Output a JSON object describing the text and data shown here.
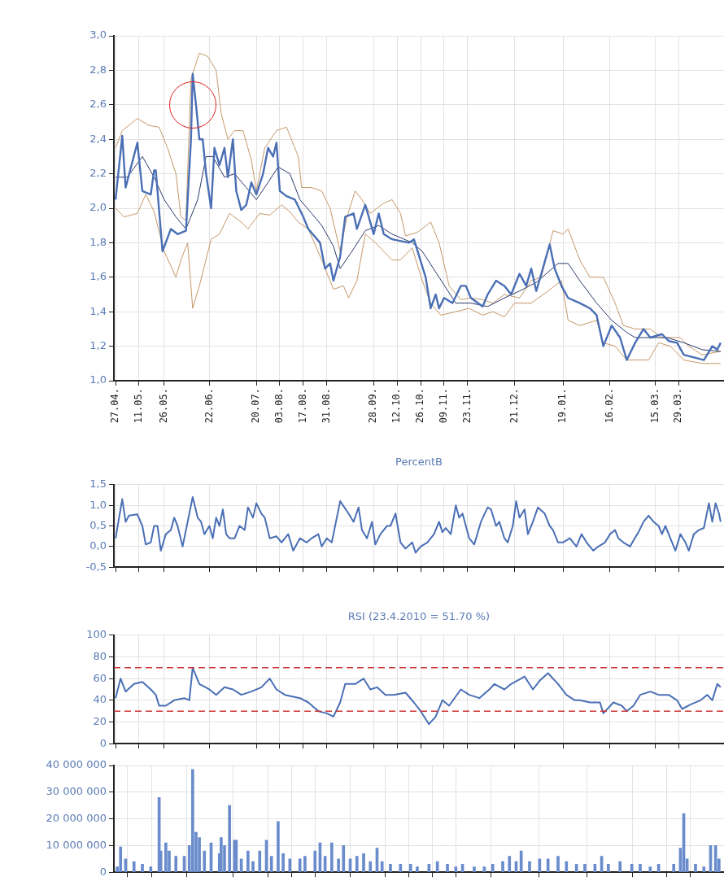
{
  "chart_data": [
    {
      "type": "line",
      "grid": true,
      "xlim": [
        "2009-04-26",
        "2010-04-25"
      ],
      "xticks": [
        {
          "value": "2009-04-27",
          "label": "27.04."
        },
        {
          "value": "2009-05-11",
          "label": "11.05."
        },
        {
          "value": "2009-05-26",
          "label": "26.05."
        },
        {
          "value": "2009-06-22",
          "label": "22.06."
        },
        {
          "value": "2009-07-20",
          "label": "20.07."
        },
        {
          "value": "2009-08-03",
          "label": "03.08."
        },
        {
          "value": "2009-08-17",
          "label": "17.08."
        },
        {
          "value": "2009-08-31",
          "label": "31.08."
        },
        {
          "value": "2009-09-28",
          "label": "28.09."
        },
        {
          "value": "2009-10-12",
          "label": "12.10."
        },
        {
          "value": "2009-10-26",
          "label": "26.10."
        },
        {
          "value": "2009-11-09",
          "label": "09.11."
        },
        {
          "value": "2009-11-23",
          "label": "23.11."
        },
        {
          "value": "2009-12-21",
          "label": "21.12."
        },
        {
          "value": "2010-01-19",
          "label": "19.01."
        },
        {
          "value": "2010-02-16",
          "label": "16.02."
        },
        {
          "value": "2010-03-15",
          "label": "15.03."
        },
        {
          "value": "2010-03-29",
          "label": "29.03."
        }
      ],
      "ylim": [
        1.0,
        3.0
      ],
      "yticks": [
        {
          "value": 1.0,
          "label": "1,0"
        },
        {
          "value": 1.2,
          "label": "1,2"
        },
        {
          "value": 1.4,
          "label": "1,4"
        },
        {
          "value": 1.6,
          "label": "1,6"
        },
        {
          "value": 1.8,
          "label": "1,8"
        },
        {
          "value": 2.0,
          "label": "2,0"
        },
        {
          "value": 2.2,
          "label": "2,2"
        },
        {
          "value": 2.4,
          "label": "2,4"
        },
        {
          "value": 2.6,
          "label": "2,6"
        },
        {
          "value": 2.8,
          "label": "2,8"
        },
        {
          "value": 3.0,
          "label": "3,0"
        }
      ],
      "series": [
        {
          "color": "#4a6fb5",
          "x": [
            "2009-04-27",
            "2009-05-01",
            "2009-05-03",
            "2009-05-10",
            "2009-05-13",
            "2009-05-18",
            "2009-05-20",
            "2009-05-21",
            "2009-05-25",
            "2009-05-30",
            "2009-06-03",
            "2009-06-08",
            "2009-06-11",
            "2009-06-12",
            "2009-06-14",
            "2009-06-16",
            "2009-06-18",
            "2009-06-20",
            "2009-06-23",
            "2009-06-25",
            "2009-06-28",
            "2009-07-01",
            "2009-07-03",
            "2009-07-06",
            "2009-07-08",
            "2009-07-11",
            "2009-07-14",
            "2009-07-17",
            "2009-07-20",
            "2009-07-24",
            "2009-07-27",
            "2009-07-30",
            "2009-08-01",
            "2009-08-03",
            "2009-08-07",
            "2009-08-12",
            "2009-08-17",
            "2009-08-20",
            "2009-08-27",
            "2009-08-30",
            "2009-09-02",
            "2009-09-04",
            "2009-09-08",
            "2009-09-11",
            "2009-09-16",
            "2009-09-18",
            "2009-09-23",
            "2009-09-28",
            "2009-10-01",
            "2009-10-04",
            "2009-10-09",
            "2009-10-19",
            "2009-10-22",
            "2009-10-29",
            "2009-11-01",
            "2009-11-04",
            "2009-11-06",
            "2009-11-09",
            "2009-11-14",
            "2009-11-19",
            "2009-11-22",
            "2009-11-25",
            "2009-12-02",
            "2009-12-05",
            "2009-12-10",
            "2009-12-15",
            "2009-12-19",
            "2009-12-24",
            "2009-12-28",
            "2009-12-31",
            "2010-01-03",
            "2010-01-06",
            "2010-01-11",
            "2010-01-14",
            "2010-01-18",
            "2010-01-22",
            "2010-01-29",
            "2010-02-04",
            "2010-02-08",
            "2010-02-12",
            "2010-02-17",
            "2010-02-22",
            "2010-02-26",
            "2010-03-03",
            "2010-03-08",
            "2010-03-12",
            "2010-03-19",
            "2010-03-23",
            "2010-03-28",
            "2010-04-01",
            "2010-04-09",
            "2010-04-13",
            "2010-04-18",
            "2010-04-21",
            "2010-04-23"
          ],
          "values": [
            2.05,
            2.42,
            2.12,
            2.38,
            2.1,
            2.08,
            2.22,
            2.22,
            1.75,
            1.88,
            1.85,
            1.87,
            2.4,
            2.78,
            2.6,
            2.4,
            2.4,
            2.2,
            2.0,
            2.35,
            2.25,
            2.35,
            2.18,
            2.4,
            2.1,
            1.99,
            2.02,
            2.15,
            2.08,
            2.2,
            2.35,
            2.3,
            2.38,
            2.1,
            2.07,
            2.05,
            1.95,
            1.88,
            1.8,
            1.65,
            1.68,
            1.58,
            1.72,
            1.95,
            1.97,
            1.88,
            2.02,
            1.85,
            1.97,
            1.85,
            1.82,
            1.8,
            1.82,
            1.6,
            1.42,
            1.5,
            1.42,
            1.48,
            1.45,
            1.55,
            1.55,
            1.48,
            1.43,
            1.5,
            1.58,
            1.55,
            1.5,
            1.62,
            1.55,
            1.65,
            1.52,
            1.62,
            1.79,
            1.65,
            1.55,
            1.48,
            1.45,
            1.42,
            1.38,
            1.2,
            1.32,
            1.25,
            1.12,
            1.22,
            1.3,
            1.25,
            1.27,
            1.23,
            1.22,
            1.15,
            1.13,
            1.12,
            1.2,
            1.18,
            1.22
          ]
        },
        {
          "color": "#2b3a6b",
          "x": [
            "2009-04-27",
            "2009-05-04",
            "2009-05-13",
            "2009-05-20",
            "2009-05-26",
            "2009-06-02",
            "2009-06-08",
            "2009-06-15",
            "2009-06-20",
            "2009-06-24",
            "2009-07-01",
            "2009-07-07",
            "2009-07-14",
            "2009-07-20",
            "2009-07-27",
            "2009-08-02",
            "2009-08-09",
            "2009-08-15",
            "2009-08-22",
            "2009-08-28",
            "2009-09-04",
            "2009-09-08",
            "2009-09-15",
            "2009-09-23",
            "2009-10-01",
            "2009-10-09",
            "2009-10-21",
            "2009-10-27",
            "2009-11-06",
            "2009-11-16",
            "2009-11-25",
            "2009-12-05",
            "2009-12-15",
            "2009-12-24",
            "2010-01-03",
            "2010-01-16",
            "2010-01-22",
            "2010-01-29",
            "2010-02-08",
            "2010-02-17",
            "2010-02-26",
            "2010-03-03",
            "2010-03-12",
            "2010-03-22",
            "2010-04-01",
            "2010-04-12",
            "2010-04-23"
          ],
          "values": [
            2.18,
            2.18,
            2.3,
            2.18,
            2.05,
            1.95,
            1.88,
            2.05,
            2.3,
            2.3,
            2.18,
            2.2,
            2.12,
            2.05,
            2.15,
            2.24,
            2.2,
            2.05,
            1.97,
            1.9,
            1.78,
            1.65,
            1.75,
            1.87,
            1.9,
            1.85,
            1.8,
            1.75,
            1.6,
            1.45,
            1.45,
            1.43,
            1.48,
            1.52,
            1.57,
            1.68,
            1.68,
            1.58,
            1.45,
            1.35,
            1.28,
            1.25,
            1.25,
            1.25,
            1.22,
            1.18,
            1.17
          ]
        },
        {
          "color": "#c4986a",
          "x": [
            "2009-04-27",
            "2009-05-01",
            "2009-05-10",
            "2009-05-17",
            "2009-05-23",
            "2009-05-28",
            "2009-06-02",
            "2009-06-05",
            "2009-06-08",
            "2009-06-11",
            "2009-06-16",
            "2009-06-21",
            "2009-06-26",
            "2009-06-29",
            "2009-07-03",
            "2009-07-07",
            "2009-07-12",
            "2009-07-17",
            "2009-07-20",
            "2009-07-25",
            "2009-08-01",
            "2009-08-07",
            "2009-08-14",
            "2009-08-16",
            "2009-08-22",
            "2009-08-28",
            "2009-09-02",
            "2009-09-08",
            "2009-09-12",
            "2009-09-17",
            "2009-09-21",
            "2009-09-26",
            "2009-10-04",
            "2009-10-09",
            "2009-10-14",
            "2009-10-17",
            "2009-10-24",
            "2009-11-01",
            "2009-11-06",
            "2009-11-12",
            "2009-11-19",
            "2009-11-25",
            "2009-12-02",
            "2009-12-08",
            "2009-12-15",
            "2009-12-24",
            "2009-12-31",
            "2010-01-06",
            "2010-01-13",
            "2010-01-19",
            "2010-01-22",
            "2010-01-29",
            "2010-02-04",
            "2010-02-12",
            "2010-02-19",
            "2010-02-24",
            "2010-03-03",
            "2010-03-12",
            "2010-03-19",
            "2010-03-30",
            "2010-04-04",
            "2010-04-12",
            "2010-04-23"
          ],
          "values": [
            2.35,
            2.45,
            2.52,
            2.48,
            2.47,
            2.35,
            2.2,
            1.95,
            1.93,
            2.75,
            2.9,
            2.88,
            2.8,
            2.55,
            2.4,
            2.45,
            2.45,
            2.28,
            2.1,
            2.35,
            2.45,
            2.47,
            2.3,
            2.12,
            2.12,
            2.1,
            2.0,
            1.75,
            1.95,
            2.1,
            2.05,
            1.97,
            2.03,
            2.05,
            1.97,
            1.84,
            1.86,
            1.92,
            1.8,
            1.55,
            1.47,
            1.48,
            1.47,
            1.45,
            1.5,
            1.48,
            1.58,
            1.6,
            1.87,
            1.85,
            1.88,
            1.7,
            1.6,
            1.6,
            1.45,
            1.32,
            1.3,
            1.3,
            1.25,
            1.25,
            1.2,
            1.15,
            1.17
          ]
        },
        {
          "color": "#c4986a",
          "x": [
            "2009-04-27",
            "2009-05-02",
            "2009-05-10",
            "2009-05-15",
            "2009-05-20",
            "2009-05-26",
            "2009-06-02",
            "2009-06-05",
            "2009-06-09",
            "2009-06-12",
            "2009-06-16",
            "2009-06-23",
            "2009-06-28",
            "2009-07-04",
            "2009-07-11",
            "2009-07-15",
            "2009-07-22",
            "2009-07-28",
            "2009-08-04",
            "2009-08-09",
            "2009-08-14",
            "2009-08-20",
            "2009-08-28",
            "2009-09-04",
            "2009-09-10",
            "2009-09-13",
            "2009-09-18",
            "2009-09-23",
            "2009-09-29",
            "2009-10-09",
            "2009-10-14",
            "2009-10-21",
            "2009-10-27",
            "2009-11-01",
            "2009-11-07",
            "2009-11-16",
            "2009-11-24",
            "2009-12-02",
            "2009-12-08",
            "2009-12-15",
            "2009-12-21",
            "2009-12-31",
            "2010-01-10",
            "2010-01-18",
            "2010-01-22",
            "2010-01-29",
            "2010-02-08",
            "2010-02-12",
            "2010-02-19",
            "2010-02-26",
            "2010-03-03",
            "2010-03-11",
            "2010-03-17",
            "2010-03-24",
            "2010-04-01",
            "2010-04-12",
            "2010-04-23"
          ],
          "values": [
            2.0,
            1.95,
            1.97,
            2.08,
            1.98,
            1.75,
            1.6,
            1.7,
            1.8,
            1.42,
            1.55,
            1.82,
            1.85,
            1.97,
            1.92,
            1.88,
            1.97,
            1.96,
            2.02,
            1.98,
            1.92,
            1.88,
            1.7,
            1.53,
            1.55,
            1.48,
            1.58,
            1.85,
            1.8,
            1.7,
            1.7,
            1.77,
            1.58,
            1.45,
            1.38,
            1.4,
            1.42,
            1.38,
            1.4,
            1.37,
            1.45,
            1.45,
            1.52,
            1.58,
            1.35,
            1.32,
            1.35,
            1.22,
            1.2,
            1.12,
            1.12,
            1.12,
            1.22,
            1.2,
            1.12,
            1.1,
            1.1
          ]
        }
      ]
    },
    {
      "type": "line",
      "title": "PercentB",
      "grid": true,
      "tick_labels": "y",
      "color": "#4a6fb5",
      "xlim": [
        "2009-04-26",
        "2010-04-25"
      ],
      "xticks": [
        {
          "value": "2009-04-27",
          "label": null
        },
        {
          "value": "2009-05-11",
          "label": null
        },
        {
          "value": "2009-05-26",
          "label": null
        },
        {
          "value": "2009-06-22",
          "label": null
        },
        {
          "value": "2009-07-20",
          "label": null
        },
        {
          "value": "2009-08-03",
          "label": null
        },
        {
          "value": "2009-08-17",
          "label": null
        },
        {
          "value": "2009-08-31",
          "label": null
        },
        {
          "value": "2009-09-28",
          "label": null
        },
        {
          "value": "2009-10-12",
          "label": null
        },
        {
          "value": "2009-10-26",
          "label": null
        },
        {
          "value": "2009-11-09",
          "label": null
        },
        {
          "value": "2009-11-23",
          "label": null
        },
        {
          "value": "2009-12-21",
          "label": null
        },
        {
          "value": "2010-01-19",
          "label": null
        },
        {
          "value": "2010-02-16",
          "label": null
        },
        {
          "value": "2010-03-15",
          "label": null
        },
        {
          "value": "2010-03-29",
          "label": null
        }
      ],
      "ylim": [
        -0.5,
        1.5
      ],
      "yticks": [
        {
          "value": -0.5,
          "label": "-0,5"
        },
        {
          "value": 0.0,
          "label": "0,0"
        },
        {
          "value": 0.5,
          "label": "0,5"
        },
        {
          "value": 1.0,
          "label": "1,0"
        },
        {
          "value": 1.5,
          "label": "1,5"
        }
      ],
      "x": [
        "2009-04-27",
        "2009-05-01",
        "2009-05-03",
        "2009-05-05",
        "2009-05-10",
        "2009-05-13",
        "2009-05-15",
        "2009-05-18",
        "2009-05-20",
        "2009-05-22",
        "2009-05-24",
        "2009-05-27",
        "2009-05-30",
        "2009-06-01",
        "2009-06-03",
        "2009-06-06",
        "2009-06-09",
        "2009-06-12",
        "2009-06-15",
        "2009-06-17",
        "2009-06-19",
        "2009-06-22",
        "2009-06-24",
        "2009-06-26",
        "2009-06-28",
        "2009-06-30",
        "2009-07-02",
        "2009-07-04",
        "2009-07-07",
        "2009-07-10",
        "2009-07-13",
        "2009-07-15",
        "2009-07-18",
        "2009-07-20",
        "2009-07-23",
        "2009-07-25",
        "2009-07-28",
        "2009-08-01",
        "2009-08-04",
        "2009-08-08",
        "2009-08-11",
        "2009-08-15",
        "2009-08-19",
        "2009-08-22",
        "2009-08-26",
        "2009-08-28",
        "2009-08-31",
        "2009-09-03",
        "2009-09-08",
        "2009-09-13",
        "2009-09-16",
        "2009-09-19",
        "2009-09-21",
        "2009-09-24",
        "2009-09-27",
        "2009-09-29",
        "2009-10-02",
        "2009-10-06",
        "2009-10-08",
        "2009-10-11",
        "2009-10-14",
        "2009-10-17",
        "2009-10-21",
        "2009-10-23",
        "2009-10-26",
        "2009-10-30",
        "2009-11-03",
        "2009-11-06",
        "2009-11-08",
        "2009-11-10",
        "2009-11-13",
        "2009-11-16",
        "2009-11-18",
        "2009-11-20",
        "2009-11-24",
        "2009-11-27",
        "2009-12-01",
        "2009-12-05",
        "2009-12-07",
        "2009-12-10",
        "2009-12-12",
        "2009-12-15",
        "2009-12-17",
        "2009-12-20",
        "2009-12-22",
        "2009-12-24",
        "2009-12-27",
        "2009-12-29",
        "2010-01-01",
        "2010-01-04",
        "2010-01-08",
        "2010-01-11",
        "2010-01-13",
        "2010-01-16",
        "2010-01-19",
        "2010-01-23",
        "2010-01-27",
        "2010-01-30",
        "2010-02-02",
        "2010-02-06",
        "2010-02-09",
        "2010-02-13",
        "2010-02-16",
        "2010-02-19",
        "2010-02-21",
        "2010-02-24",
        "2010-02-28",
        "2010-03-02",
        "2010-03-05",
        "2010-03-08",
        "2010-03-11",
        "2010-03-14",
        "2010-03-17",
        "2010-03-19",
        "2010-03-21",
        "2010-03-24",
        "2010-03-27",
        "2010-03-30",
        "2010-04-02",
        "2010-04-04",
        "2010-04-07",
        "2010-04-10",
        "2010-04-13",
        "2010-04-16",
        "2010-04-18",
        "2010-04-20",
        "2010-04-22",
        "2010-04-23"
      ],
      "values": [
        0.2,
        1.15,
        0.6,
        0.75,
        0.78,
        0.5,
        0.05,
        0.1,
        0.5,
        0.5,
        -0.1,
        0.3,
        0.4,
        0.7,
        0.5,
        0.0,
        0.6,
        1.2,
        0.7,
        0.6,
        0.3,
        0.5,
        0.2,
        0.7,
        0.5,
        0.9,
        0.3,
        0.2,
        0.2,
        0.5,
        0.4,
        0.95,
        0.7,
        1.05,
        0.8,
        0.7,
        0.2,
        0.25,
        0.1,
        0.3,
        -0.1,
        0.2,
        0.1,
        0.2,
        0.3,
        0.0,
        0.2,
        0.1,
        1.1,
        0.8,
        0.6,
        0.95,
        0.4,
        0.2,
        0.6,
        0.05,
        0.3,
        0.5,
        0.5,
        0.8,
        0.1,
        -0.05,
        0.1,
        -0.15,
        0.0,
        0.1,
        0.3,
        0.6,
        0.35,
        0.45,
        0.3,
        1.0,
        0.7,
        0.8,
        0.2,
        0.05,
        0.6,
        0.95,
        0.9,
        0.5,
        0.6,
        0.2,
        0.1,
        0.5,
        1.1,
        0.7,
        0.9,
        0.3,
        0.6,
        0.95,
        0.8,
        0.5,
        0.4,
        0.1,
        0.1,
        0.2,
        0.0,
        0.3,
        0.1,
        -0.1,
        0.0,
        0.1,
        0.3,
        0.4,
        0.2,
        0.1,
        0.0,
        0.15,
        0.35,
        0.6,
        0.75,
        0.6,
        0.5,
        0.3,
        0.5,
        0.2,
        -0.1,
        0.3,
        0.1,
        -0.1,
        0.3,
        0.4,
        0.45,
        1.05,
        0.6,
        1.05,
        0.8,
        0.6
      ]
    },
    {
      "type": "line",
      "title": "RSI (23.4.2010 = 51.70 %)",
      "grid": true,
      "tick_labels": "y",
      "color": "#4a6fb5",
      "xlim": [
        "2009-04-26",
        "2010-04-25"
      ],
      "xticks": [
        {
          "value": "2009-04-27",
          "label": null
        },
        {
          "value": "2009-05-11",
          "label": null
        },
        {
          "value": "2009-05-26",
          "label": null
        },
        {
          "value": "2009-06-22",
          "label": null
        },
        {
          "value": "2009-07-20",
          "label": null
        },
        {
          "value": "2009-08-03",
          "label": null
        },
        {
          "value": "2009-08-17",
          "label": null
        },
        {
          "value": "2009-08-31",
          "label": null
        },
        {
          "value": "2009-09-28",
          "label": null
        },
        {
          "value": "2009-10-12",
          "label": null
        },
        {
          "value": "2009-10-26",
          "label": null
        },
        {
          "value": "2009-11-09",
          "label": null
        },
        {
          "value": "2009-11-23",
          "label": null
        },
        {
          "value": "2009-12-21",
          "label": null
        },
        {
          "value": "2010-01-19",
          "label": null
        },
        {
          "value": "2010-02-16",
          "label": null
        },
        {
          "value": "2010-03-15",
          "label": null
        },
        {
          "value": "2010-03-29",
          "label": null
        }
      ],
      "ylim": [
        0,
        100
      ],
      "yticks": [
        0,
        20,
        40,
        60,
        80,
        100
      ],
      "ref_lines": [
        {
          "axis": "y",
          "value": 70,
          "color": "#cc3333",
          "line_style": "dashed"
        },
        {
          "axis": "y",
          "value": 30,
          "color": "#cc3333",
          "line_style": "dashed"
        }
      ],
      "x": [
        "2009-04-27",
        "2009-04-30",
        "2009-05-03",
        "2009-05-08",
        "2009-05-13",
        "2009-05-18",
        "2009-05-21",
        "2009-05-23",
        "2009-05-27",
        "2009-06-01",
        "2009-06-07",
        "2009-06-10",
        "2009-06-12",
        "2009-06-16",
        "2009-06-22",
        "2009-06-26",
        "2009-07-01",
        "2009-07-06",
        "2009-07-11",
        "2009-07-17",
        "2009-07-23",
        "2009-07-28",
        "2009-08-01",
        "2009-08-06",
        "2009-08-15",
        "2009-08-20",
        "2009-08-26",
        "2009-08-31",
        "2009-09-04",
        "2009-09-08",
        "2009-09-11",
        "2009-09-17",
        "2009-09-22",
        "2009-09-26",
        "2009-09-30",
        "2009-10-05",
        "2009-10-10",
        "2009-10-17",
        "2009-10-22",
        "2009-10-26",
        "2009-10-31",
        "2009-11-04",
        "2009-11-08",
        "2009-11-12",
        "2009-11-19",
        "2009-11-24",
        "2009-11-30",
        "2009-12-06",
        "2009-12-09",
        "2009-12-15",
        "2009-12-19",
        "2009-12-25",
        "2009-12-27",
        "2010-01-01",
        "2010-01-05",
        "2010-01-10",
        "2010-01-16",
        "2010-01-21",
        "2010-01-26",
        "2010-01-29",
        "2010-02-04",
        "2010-02-10",
        "2010-02-12",
        "2010-02-18",
        "2010-02-23",
        "2010-02-26",
        "2010-03-02",
        "2010-03-06",
        "2010-03-12",
        "2010-03-17",
        "2010-03-23",
        "2010-03-28",
        "2010-03-31",
        "2010-04-05",
        "2010-04-11",
        "2010-04-15",
        "2010-04-18",
        "2010-04-21",
        "2010-04-23"
      ],
      "values": [
        42,
        60,
        48,
        55,
        57,
        50,
        45,
        35,
        35,
        40,
        42,
        40,
        70,
        55,
        50,
        45,
        52,
        50,
        45,
        48,
        52,
        60,
        50,
        45,
        42,
        38,
        30,
        28,
        25,
        38,
        55,
        55,
        60,
        50,
        52,
        45,
        45,
        47,
        38,
        30,
        18,
        25,
        40,
        35,
        50,
        45,
        42,
        50,
        55,
        50,
        55,
        60,
        62,
        50,
        58,
        65,
        55,
        45,
        40,
        40,
        38,
        38,
        28,
        38,
        35,
        30,
        35,
        45,
        48,
        45,
        45,
        40,
        32,
        36,
        40,
        45,
        40,
        55,
        52
      ]
    },
    {
      "type": "bar",
      "grid": true,
      "tick_labels": "y",
      "color": "#6a8ccc",
      "xlim": [
        "2009-04-26",
        "2010-04-25"
      ],
      "xticks": [
        {
          "value": "2009-04-27",
          "label": null
        },
        {
          "value": "2009-05-11",
          "label": null
        },
        {
          "value": "2009-05-26",
          "label": null
        },
        {
          "value": "2009-06-22",
          "label": null
        },
        {
          "value": "2009-07-20",
          "label": null
        },
        {
          "value": "2009-08-03",
          "label": null
        },
        {
          "value": "2009-08-17",
          "label": null
        },
        {
          "value": "2009-08-31",
          "label": null
        },
        {
          "value": "2009-09-28",
          "label": null
        },
        {
          "value": "2009-10-12",
          "label": null
        },
        {
          "value": "2009-10-26",
          "label": null
        },
        {
          "value": "2009-11-09",
          "label": null
        },
        {
          "value": "2009-11-23",
          "label": null
        },
        {
          "value": "2009-12-21",
          "label": null
        },
        {
          "value": "2010-01-19",
          "label": null
        },
        {
          "value": "2010-02-16",
          "label": null
        },
        {
          "value": "2010-03-15",
          "label": null
        },
        {
          "value": "2010-03-29",
          "label": null
        }
      ],
      "ylim": [
        0,
        40000000
      ],
      "yticks": [
        {
          "value": 0,
          "label": "0"
        },
        {
          "value": 10000000,
          "label": "10 000 000"
        },
        {
          "value": 20000000,
          "label": "20 000 000"
        },
        {
          "value": 30000000,
          "label": "30 000 000"
        },
        {
          "value": 40000000,
          "label": "40 000 000"
        }
      ],
      "x": [
        "2009-04-28",
        "2009-04-30",
        "2009-05-03",
        "2009-05-08",
        "2009-05-13",
        "2009-05-18",
        "2009-05-23",
        "2009-05-24",
        "2009-05-27",
        "2009-05-29",
        "2009-06-02",
        "2009-06-07",
        "2009-06-10",
        "2009-06-12",
        "2009-06-14",
        "2009-06-16",
        "2009-06-19",
        "2009-06-23",
        "2009-06-28",
        "2009-06-29",
        "2009-07-01",
        "2009-07-04",
        "2009-07-07",
        "2009-07-08",
        "2009-07-11",
        "2009-07-15",
        "2009-07-18",
        "2009-07-22",
        "2009-07-26",
        "2009-07-29",
        "2009-08-02",
        "2009-08-05",
        "2009-08-09",
        "2009-08-15",
        "2009-08-18",
        "2009-08-24",
        "2009-08-27",
        "2009-08-30",
        "2009-09-03",
        "2009-09-07",
        "2009-09-10",
        "2009-09-14",
        "2009-09-18",
        "2009-09-22",
        "2009-09-26",
        "2009-09-30",
        "2009-10-03",
        "2009-10-08",
        "2009-10-14",
        "2009-10-20",
        "2009-10-24",
        "2009-10-31",
        "2009-11-05",
        "2009-11-11",
        "2009-11-16",
        "2009-11-20",
        "2009-11-27",
        "2009-12-03",
        "2009-12-08",
        "2009-12-14",
        "2009-12-18",
        "2009-12-22",
        "2009-12-25",
        "2009-12-30",
        "2010-01-05",
        "2010-01-10",
        "2010-01-16",
        "2010-01-21",
        "2010-01-27",
        "2010-02-01",
        "2010-02-07",
        "2010-02-11",
        "2010-02-15",
        "2010-02-22",
        "2010-03-01",
        "2010-03-06",
        "2010-03-12",
        "2010-03-17",
        "2010-03-26",
        "2010-03-30",
        "2010-04-01",
        "2010-04-03",
        "2010-04-08",
        "2010-04-13",
        "2010-04-17",
        "2010-04-20",
        "2010-04-22"
      ],
      "values": [
        2000000,
        9500000,
        5000000,
        4000000,
        3000000,
        2000000,
        28000000,
        8000000,
        11000000,
        8000000,
        6000000,
        6000000,
        10000000,
        38500000,
        15000000,
        13000000,
        8000000,
        11000000,
        7000000,
        13000000,
        10000000,
        25000000,
        12000000,
        12000000,
        5000000,
        8000000,
        4000000,
        8000000,
        12000000,
        6000000,
        19000000,
        7000000,
        5000000,
        5000000,
        6000000,
        8000000,
        11000000,
        6000000,
        11000000,
        5000000,
        10000000,
        5000000,
        6000000,
        7000000,
        4000000,
        9000000,
        4000000,
        3000000,
        3000000,
        3000000,
        2000000,
        3000000,
        4000000,
        3000000,
        2000000,
        3000000,
        2000000,
        2000000,
        3000000,
        4000000,
        6000000,
        4000000,
        8000000,
        4000000,
        5000000,
        5000000,
        6000000,
        4000000,
        3000000,
        3000000,
        3000000,
        6000000,
        3000000,
        4000000,
        3000000,
        3000000,
        2000000,
        3000000,
        3000000,
        9000000,
        22000000,
        5000000,
        3000000,
        2000000,
        10000000,
        10000000,
        5000000
      ]
    }
  ]
}
